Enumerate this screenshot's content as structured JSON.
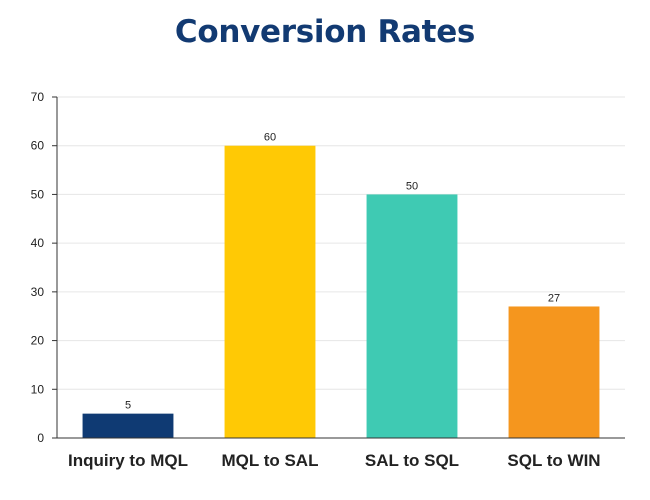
{
  "chart_data": {
    "type": "bar",
    "title": "Conversion Rates",
    "categories": [
      "Inquiry to MQL",
      "MQL to SAL",
      "SAL to SQL",
      "SQL to WIN"
    ],
    "values": [
      5,
      60,
      50,
      27
    ],
    "colors": [
      "#0f3a73",
      "#ffc905",
      "#3fcab3",
      "#f5961e"
    ],
    "ylim": [
      0,
      70
    ],
    "yticks": [
      0,
      10,
      20,
      30,
      40,
      50,
      60,
      70
    ],
    "xlabel": "",
    "ylabel": "",
    "grid": true,
    "data_labels": true
  }
}
